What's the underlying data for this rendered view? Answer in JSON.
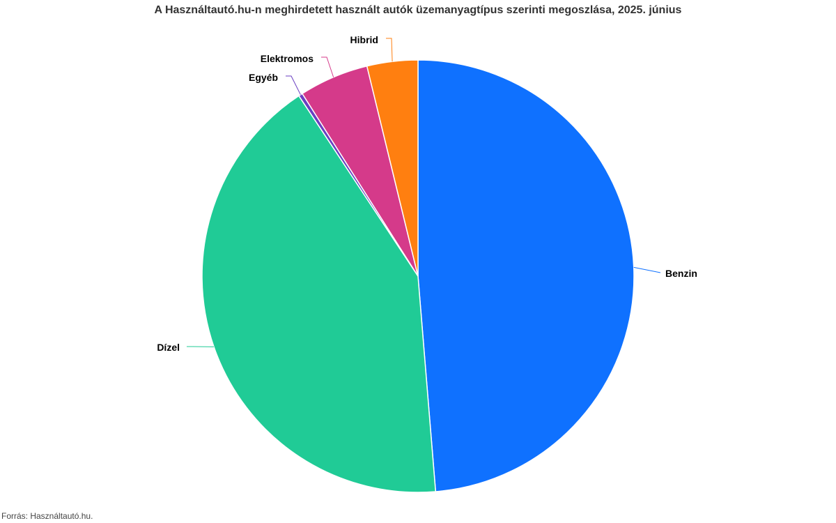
{
  "chart_data": {
    "type": "pie",
    "title": "A Használtautó.hu-n meghirdetett használt autók üzemanyagtípus szerinti megoszlása, 2025. június",
    "source": "Forrás: Használtautó.hu.",
    "categories": [
      "Benzin",
      "Dízel",
      "Egyéb",
      "Elektromos",
      "Hibrid"
    ],
    "values": [
      48.7,
      42.0,
      0.3,
      5.2,
      3.8
    ],
    "colors": [
      "#0f71ff",
      "#20cb96",
      "#6a3ec1",
      "#d53a8a",
      "#ff7f10"
    ],
    "legend": "none"
  }
}
